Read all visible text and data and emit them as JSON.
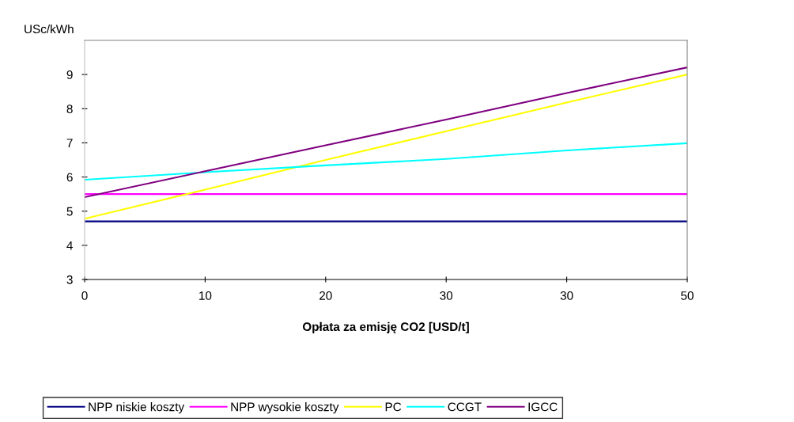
{
  "chart_data": {
    "type": "line",
    "ylabel": "USc/kWh",
    "xlabel": "Opłata za emisję CO2 [USD/t]",
    "categories": [
      "0",
      "10",
      "20",
      "30",
      "30",
      "50"
    ],
    "series": [
      {
        "name": "NPP niskie koszty",
        "color": "#000080",
        "values": [
          4.7,
          4.7,
          4.7,
          4.7,
          4.7,
          4.7
        ]
      },
      {
        "name": "NPP wysokie koszty",
        "color": "#ff00ff",
        "values": [
          5.5,
          5.5,
          5.5,
          5.5,
          5.5,
          5.5
        ]
      },
      {
        "name": "PC",
        "color": "#ffff00",
        "values": [
          4.78,
          5.63,
          6.5,
          7.34,
          8.18,
          9.0
        ]
      },
      {
        "name": "CCGT",
        "color": "#00ffff",
        "values": [
          5.92,
          6.14,
          6.34,
          6.53,
          6.78,
          6.99
        ]
      },
      {
        "name": "IGCC",
        "color": "#800080",
        "values": [
          5.41,
          6.17,
          6.93,
          7.68,
          8.46,
          9.21
        ]
      }
    ],
    "ylim": [
      3,
      10
    ],
    "yticks": [
      3,
      4,
      5,
      6,
      7,
      8,
      9
    ],
    "grid": false,
    "legend": "bottom",
    "marker": "none",
    "line_style": "solid"
  }
}
